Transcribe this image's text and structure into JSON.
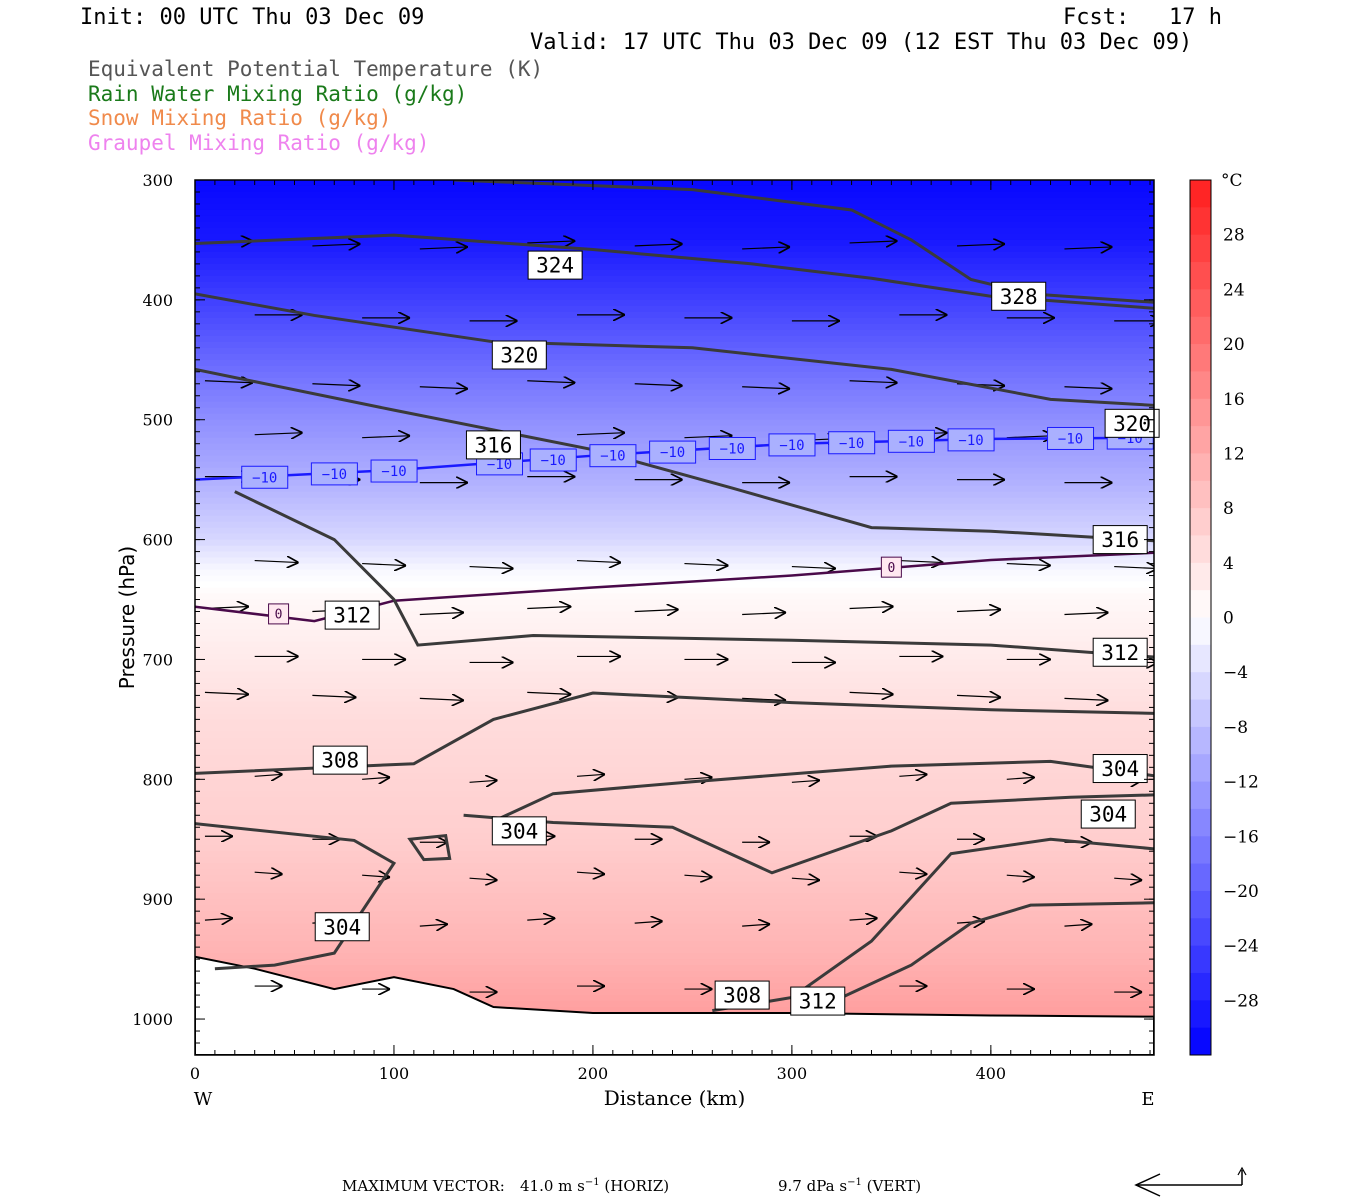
{
  "header": {
    "init": "Init: 00 UTC Thu 03 Dec 09",
    "fcst": "Fcst:   17 h",
    "valid": "Valid: 17 UTC Thu 03 Dec 09 (12 EST Thu 03 Dec 09)"
  },
  "legend": [
    {
      "label": "Equivalent Potential Temperature (K)",
      "color": "#555555"
    },
    {
      "label": "Rain Water Mixing Ratio (g/kg)",
      "color": "#1a7a1a"
    },
    {
      "label": "Snow Mixing Ratio (g/kg)",
      "color": "#f08a4b"
    },
    {
      "label": "Graupel Mixing Ratio (g/kg)",
      "color": "#ee82ee"
    }
  ],
  "chart_data": {
    "type": "heatmap",
    "xlabel": "Distance (km)",
    "ylabel": "Pressure (hPa)",
    "xlim": [
      0,
      482
    ],
    "ylim": [
      1030,
      300
    ],
    "x_ticks": [
      "0",
      "100",
      "200",
      "300",
      "400"
    ],
    "y_ticks": [
      "300",
      "400",
      "500",
      "600",
      "700",
      "800",
      "900",
      "1000"
    ],
    "x_ends": {
      "left": "W",
      "right": "E"
    },
    "colorbar": {
      "unit": "°C",
      "range": [
        -32,
        32
      ],
      "step": 2,
      "tick_labels": [
        "28",
        "24",
        "20",
        "16",
        "12",
        "8",
        "4",
        "0",
        "−4",
        "−8",
        "−12",
        "−16",
        "−20",
        "−24",
        "−28"
      ],
      "tick_values": [
        28,
        24,
        20,
        16,
        12,
        8,
        4,
        0,
        -4,
        -8,
        -12,
        -16,
        -20,
        -24,
        -28
      ]
    },
    "temperature_profile": {
      "pressure": [
        300,
        350,
        400,
        450,
        500,
        550,
        600,
        625,
        650,
        700,
        750,
        800,
        850,
        900,
        950,
        1000
      ],
      "celsius": [
        -31,
        -29,
        -24,
        -19,
        -14,
        -10,
        -5,
        -1,
        1,
        3,
        5,
        6,
        7,
        9,
        11,
        14
      ]
    },
    "theta_e_contours": [
      {
        "label": "324",
        "points": [
          [
            0,
            353
          ],
          [
            100,
            346
          ],
          [
            200,
            358
          ],
          [
            280,
            370
          ],
          [
            340,
            382
          ],
          [
            400,
            397
          ],
          [
            482,
            407
          ]
        ]
      },
      {
        "label": "328",
        "points": [
          [
            130,
            300
          ],
          [
            250,
            308
          ],
          [
            330,
            325
          ],
          [
            360,
            350
          ],
          [
            390,
            383
          ],
          [
            420,
            395
          ],
          [
            482,
            402
          ]
        ]
      },
      {
        "label": "320",
        "points": [
          [
            0,
            395
          ],
          [
            60,
            413
          ],
          [
            150,
            435
          ],
          [
            250,
            440
          ],
          [
            350,
            458
          ],
          [
            430,
            483
          ],
          [
            482,
            488
          ]
        ]
      },
      {
        "label": "316",
        "points": [
          [
            0,
            458
          ],
          [
            100,
            492
          ],
          [
            200,
            525
          ],
          [
            270,
            557
          ],
          [
            340,
            590
          ],
          [
            400,
            593
          ],
          [
            482,
            601
          ]
        ]
      },
      {
        "label": "312",
        "points": [
          [
            20,
            560
          ],
          [
            70,
            600
          ],
          [
            100,
            650
          ],
          [
            112,
            688
          ],
          [
            170,
            680
          ],
          [
            300,
            684
          ],
          [
            400,
            688
          ],
          [
            482,
            698
          ]
        ]
      },
      {
        "label": "308",
        "points": [
          [
            0,
            795
          ],
          [
            110,
            787
          ],
          [
            150,
            750
          ],
          [
            200,
            728
          ],
          [
            300,
            736
          ],
          [
            400,
            742
          ],
          [
            482,
            745
          ]
        ]
      },
      {
        "label": "304",
        "points": [
          [
            0,
            837
          ],
          [
            80,
            851
          ],
          [
            100,
            870
          ],
          [
            70,
            945
          ],
          [
            40,
            955
          ],
          [
            10,
            958
          ]
        ]
      },
      {
        "label": "304",
        "points": [
          [
            135,
            830
          ],
          [
            180,
            836
          ],
          [
            240,
            840
          ],
          [
            290,
            878
          ],
          [
            350,
            843
          ],
          [
            380,
            820
          ],
          [
            440,
            815
          ],
          [
            482,
            813
          ]
        ]
      },
      {
        "label": "304",
        "points": [
          [
            150,
            835
          ],
          [
            180,
            812
          ],
          [
            250,
            802
          ],
          [
            350,
            789
          ],
          [
            430,
            785
          ],
          [
            482,
            797
          ]
        ]
      },
      {
        "label": "308",
        "points": [
          [
            260,
            993
          ],
          [
            300,
            982
          ],
          [
            340,
            935
          ],
          [
            380,
            862
          ],
          [
            430,
            850
          ],
          [
            482,
            858
          ]
        ]
      },
      {
        "label": "312",
        "points": [
          [
            325,
            982
          ],
          [
            360,
            955
          ],
          [
            390,
            920
          ],
          [
            420,
            905
          ],
          [
            482,
            903
          ]
        ]
      }
    ],
    "isotherms": [
      {
        "label": "−10",
        "color": "#1a1aff",
        "points": [
          [
            0,
            550
          ],
          [
            100,
            542
          ],
          [
            200,
            530
          ],
          [
            300,
            520
          ],
          [
            400,
            516
          ],
          [
            482,
            515
          ]
        ]
      },
      {
        "label": "0",
        "color": "#4a0a4a",
        "points": [
          [
            0,
            656
          ],
          [
            60,
            668
          ],
          [
            100,
            651
          ],
          [
            200,
            640
          ],
          [
            300,
            630
          ],
          [
            400,
            617
          ],
          [
            482,
            611
          ]
        ]
      }
    ],
    "footer": {
      "maximum_vector_label": "MAXIMUM VECTOR:",
      "horiz": "41.0 m s",
      "horiz_unit": "(HORIZ)",
      "vert": "9.7 dPa s",
      "vert_unit": "(VERT)",
      "exponent": "−1"
    }
  }
}
